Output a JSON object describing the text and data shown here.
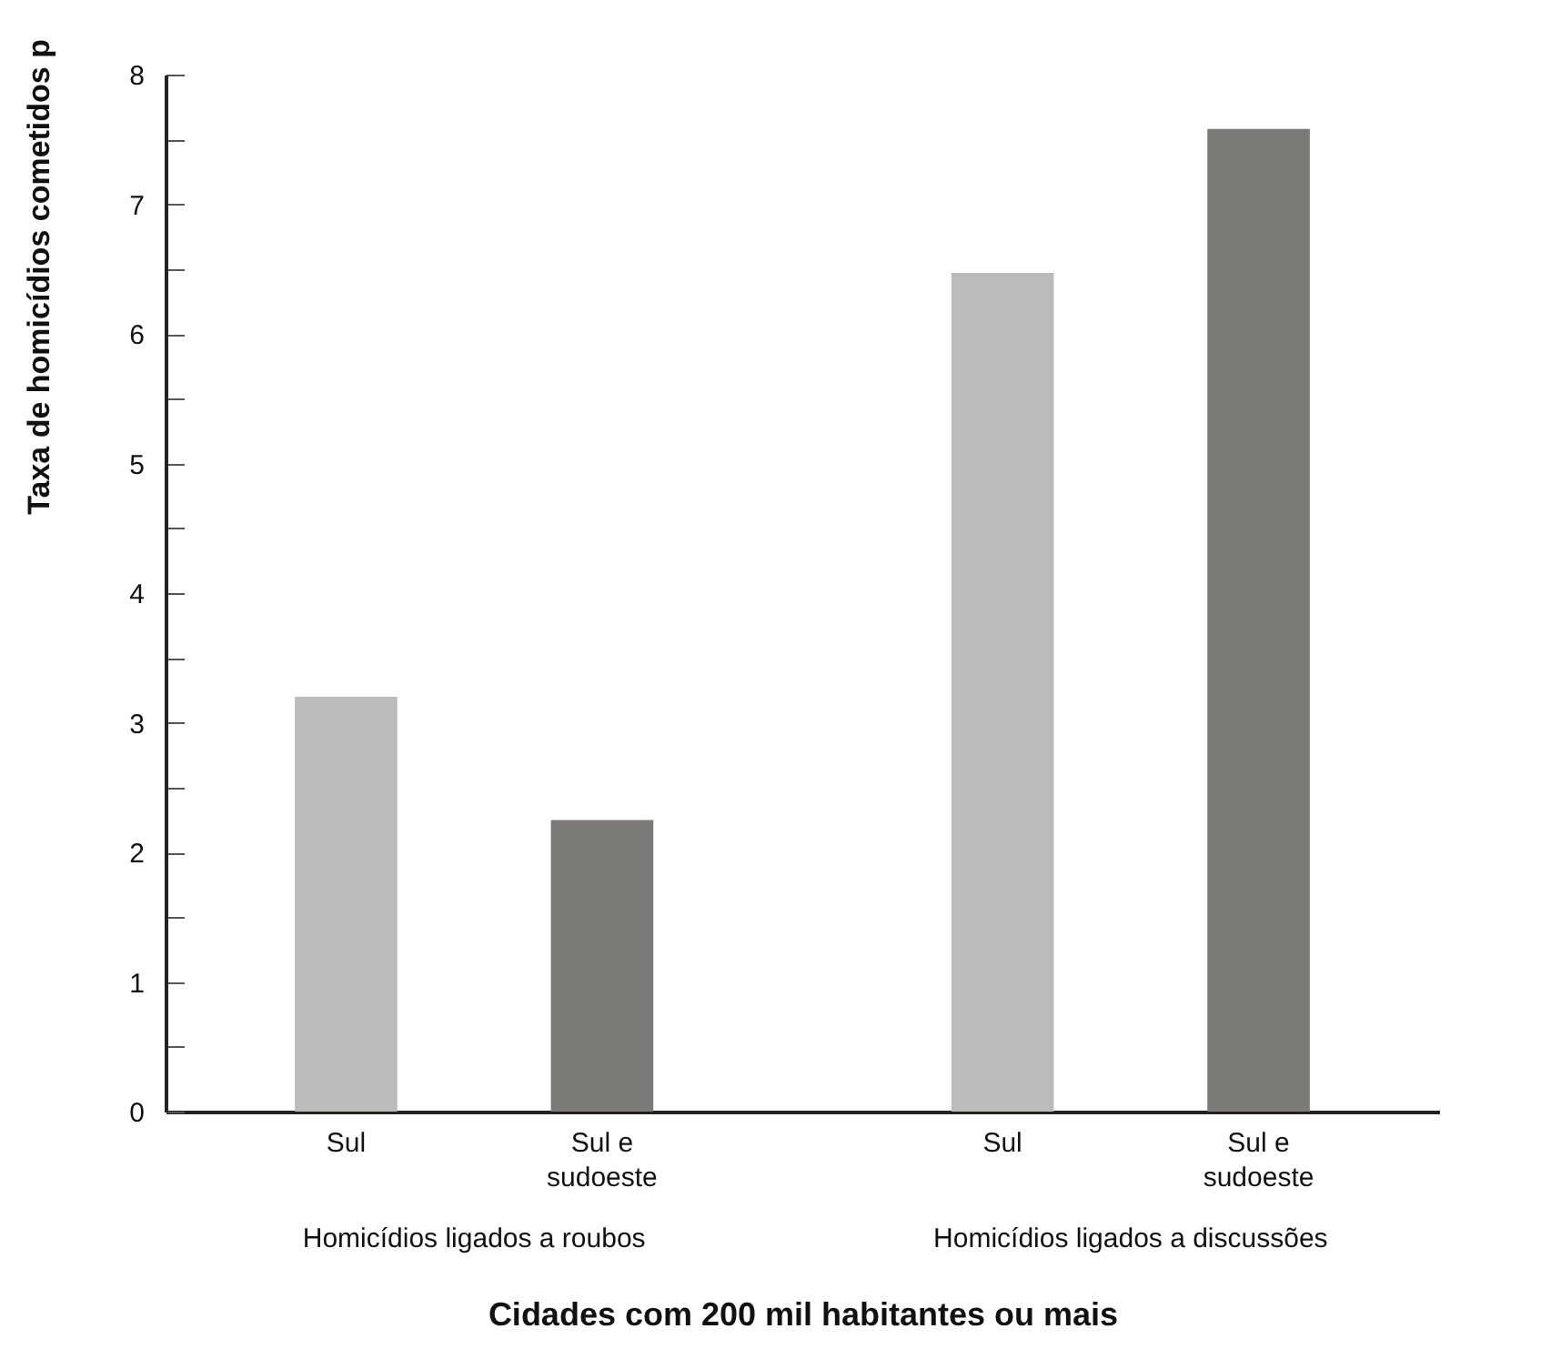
{
  "chart_data": {
    "type": "bar",
    "xlabel": "Cidades com 200 mil habitantes ou mais",
    "ylabel": "Taxa de homicídios cometidos p",
    "categories": [
      "Homicídios ligados a roubos",
      "Homicídios ligados a discussões"
    ],
    "series": [
      {
        "name": "Sul",
        "color": "#bbbbba",
        "values": [
          3.2,
          6.47
        ]
      },
      {
        "name": "Sul e sudoeste",
        "color": "#7b7a76",
        "values": [
          2.25,
          7.58
        ]
      }
    ],
    "ylim": [
      0,
      8
    ],
    "yticks": [
      0,
      {
        "value": 0.5,
        "label": null
      },
      1,
      {
        "value": 1.5,
        "label": null
      },
      2,
      {
        "value": 2.5,
        "label": null
      },
      3,
      {
        "value": 3.5,
        "label": null
      },
      4,
      {
        "value": 4.5,
        "label": null
      },
      5,
      {
        "value": 5.5,
        "label": null
      },
      6,
      {
        "value": 6.5,
        "label": null
      },
      7,
      {
        "value": 7.5,
        "label": null
      },
      8
    ],
    "grid": false,
    "legend": false
  }
}
